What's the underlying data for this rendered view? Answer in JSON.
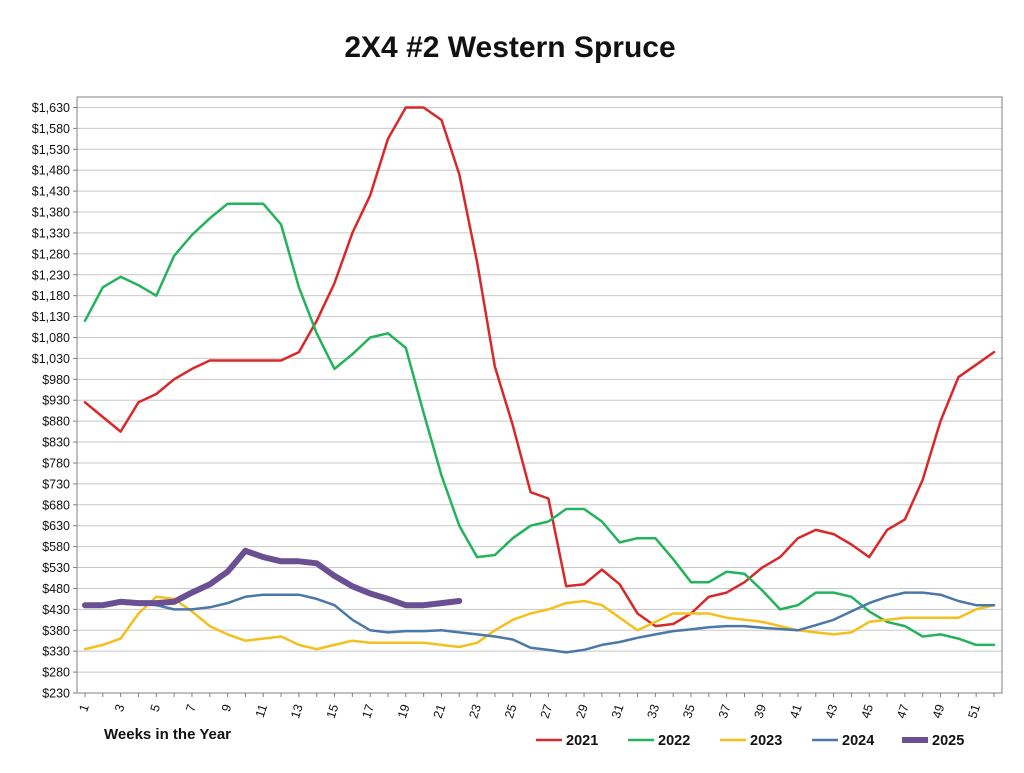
{
  "chart_data": {
    "type": "line",
    "title": "2X4 #2 Western Spruce",
    "xlabel": "Weeks in the Year",
    "ylabel": "",
    "xlim": [
      1,
      52
    ],
    "ylim": [
      230,
      1655
    ],
    "y_ticks": [
      "$230",
      "$280",
      "$330",
      "$380",
      "$430",
      "$480",
      "$530",
      "$580",
      "$630",
      "$680",
      "$730",
      "$780",
      "$830",
      "$880",
      "$930",
      "$980",
      "$1,030",
      "$1,080",
      "$1,130",
      "$1,180",
      "$1,230",
      "$1,280",
      "$1,330",
      "$1,380",
      "$1,430",
      "$1,480",
      "$1,530",
      "$1,580",
      "$1,630"
    ],
    "x_ticks": [
      "1",
      "3",
      "5",
      "7",
      "9",
      "11",
      "13",
      "15",
      "17",
      "19",
      "21",
      "23",
      "25",
      "27",
      "29",
      "31",
      "33",
      "35",
      "37",
      "39",
      "41",
      "43",
      "45",
      "47",
      "49",
      "51"
    ],
    "grid": true,
    "legend_position": "bottom",
    "series": [
      {
        "name": "2021",
        "color": "#d8282a",
        "width": 2.5,
        "x": [
          1,
          2,
          3,
          4,
          5,
          6,
          7,
          8,
          9,
          10,
          11,
          12,
          13,
          14,
          15,
          16,
          17,
          18,
          19,
          20,
          21,
          22,
          23,
          24,
          25,
          26,
          27,
          28,
          29,
          30,
          31,
          32,
          33,
          34,
          35,
          36,
          37,
          38,
          39,
          40,
          41,
          42,
          43,
          44,
          45,
          46,
          47,
          48,
          49,
          50,
          51,
          52
        ],
        "values": [
          925,
          890,
          855,
          925,
          945,
          980,
          1005,
          1025,
          1025,
          1025,
          1025,
          1025,
          1045,
          1120,
          1210,
          1330,
          1420,
          1555,
          1630,
          1630,
          1600,
          1470,
          1260,
          1010,
          870,
          710,
          695,
          485,
          490,
          525,
          490,
          420,
          390,
          395,
          420,
          460,
          470,
          495,
          530,
          555,
          600,
          620,
          610,
          585,
          555,
          620,
          645,
          740,
          880,
          985,
          1015,
          1045
        ]
      },
      {
        "name": "2022",
        "color": "#22b35b",
        "width": 2.5,
        "x": [
          1,
          2,
          3,
          4,
          5,
          6,
          7,
          8,
          9,
          10,
          11,
          12,
          13,
          14,
          15,
          16,
          17,
          18,
          19,
          20,
          21,
          22,
          23,
          24,
          25,
          26,
          27,
          28,
          29,
          30,
          31,
          32,
          33,
          34,
          35,
          36,
          37,
          38,
          39,
          40,
          41,
          42,
          43,
          44,
          45,
          46,
          47,
          48,
          49,
          50,
          51,
          52
        ],
        "values": [
          1120,
          1200,
          1225,
          1205,
          1180,
          1275,
          1325,
          1365,
          1400,
          1400,
          1400,
          1350,
          1200,
          1090,
          1005,
          1040,
          1080,
          1090,
          1055,
          900,
          750,
          630,
          555,
          560,
          600,
          630,
          640,
          670,
          670,
          640,
          590,
          600,
          600,
          550,
          495,
          495,
          520,
          515,
          475,
          430,
          440,
          470,
          470,
          460,
          425,
          400,
          390,
          365,
          370,
          360,
          345,
          345
        ]
      },
      {
        "name": "2023",
        "color": "#f4c01e",
        "width": 2.5,
        "x": [
          1,
          2,
          3,
          4,
          5,
          6,
          7,
          8,
          9,
          10,
          11,
          12,
          13,
          14,
          15,
          16,
          17,
          18,
          19,
          20,
          21,
          22,
          23,
          24,
          25,
          26,
          27,
          28,
          29,
          30,
          31,
          32,
          33,
          34,
          35,
          36,
          37,
          38,
          39,
          40,
          41,
          42,
          43,
          44,
          45,
          46,
          47,
          48,
          49,
          50,
          51,
          52
        ],
        "values": [
          335,
          345,
          360,
          420,
          460,
          455,
          425,
          390,
          370,
          355,
          360,
          365,
          345,
          335,
          345,
          355,
          350,
          350,
          350,
          350,
          345,
          340,
          350,
          380,
          405,
          420,
          430,
          445,
          450,
          440,
          410,
          380,
          400,
          420,
          420,
          420,
          410,
          405,
          400,
          390,
          380,
          375,
          370,
          375,
          400,
          405,
          410,
          410,
          410,
          410,
          430,
          440
        ]
      },
      {
        "name": "2024",
        "color": "#4a78a8",
        "width": 2.5,
        "x": [
          1,
          2,
          3,
          4,
          5,
          6,
          7,
          8,
          9,
          10,
          11,
          12,
          13,
          14,
          15,
          16,
          17,
          18,
          19,
          20,
          21,
          22,
          23,
          24,
          25,
          26,
          27,
          28,
          29,
          30,
          31,
          32,
          33,
          34,
          35,
          36,
          37,
          38,
          39,
          40,
          41,
          42,
          43,
          44,
          45,
          46,
          47,
          48,
          49,
          50,
          51,
          52
        ],
        "values": [
          440,
          440,
          445,
          445,
          440,
          430,
          430,
          435,
          445,
          460,
          465,
          465,
          465,
          455,
          440,
          405,
          380,
          375,
          378,
          378,
          380,
          375,
          370,
          365,
          358,
          338,
          333,
          327,
          333,
          345,
          352,
          362,
          370,
          378,
          382,
          387,
          390,
          390,
          386,
          383,
          380,
          392,
          405,
          425,
          445,
          460,
          470,
          470,
          465,
          450,
          440,
          440
        ]
      },
      {
        "name": "2025",
        "color": "#6a4f93",
        "width": 6,
        "x": [
          1,
          2,
          3,
          4,
          5,
          6,
          7,
          8,
          9,
          10,
          11,
          12,
          13,
          14,
          15,
          16,
          17,
          18,
          19,
          20,
          21,
          22
        ],
        "values": [
          440,
          440,
          448,
          445,
          445,
          448,
          470,
          490,
          520,
          570,
          555,
          545,
          545,
          540,
          510,
          485,
          468,
          455,
          440,
          440,
          445,
          450
        ]
      }
    ]
  }
}
